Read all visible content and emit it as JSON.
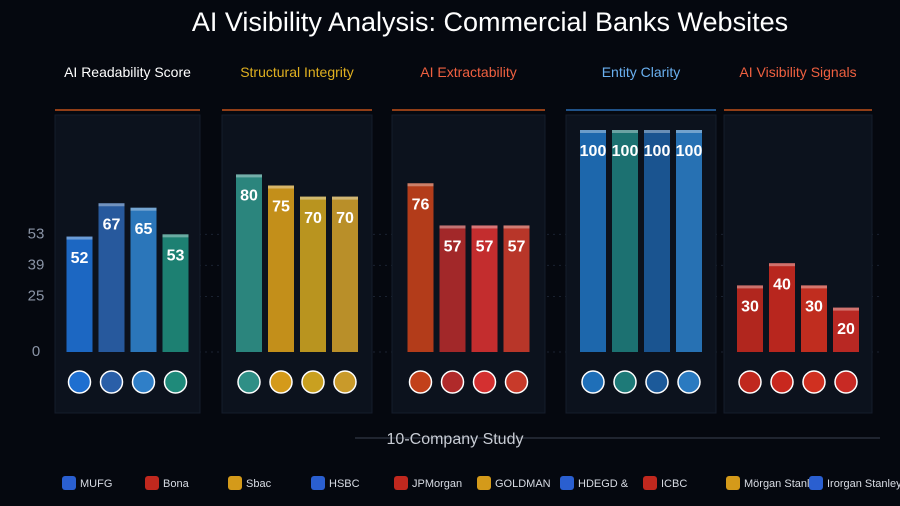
{
  "title": "AI Visibility Analysis: Commercial Banks Websites",
  "chart_data": [
    {
      "type": "bar",
      "title": "AI Readability Score",
      "title_color": "#ffffff",
      "values": [
        52,
        67,
        65,
        53
      ],
      "colors": [
        "#1e6fd0",
        "#2a5fa8",
        "#2f7fc8",
        "#1f8a7a"
      ],
      "ylim": [
        0,
        100
      ],
      "yticks": [
        0,
        25,
        39,
        53
      ]
    },
    {
      "type": "bar",
      "title": "Structural Integrity",
      "title_color": "#e0b020",
      "values": [
        80,
        75,
        70,
        70
      ],
      "colors": [
        "#2f8f86",
        "#d49a1a",
        "#c9a020",
        "#c99a2a"
      ]
    },
    {
      "type": "bar",
      "title": "AI Extractability",
      "title_color": "#f06040",
      "values": [
        76,
        57,
        57,
        57
      ],
      "colors": [
        "#c2401a",
        "#b02a2a",
        "#d43030",
        "#c83a2a"
      ]
    },
    {
      "type": "bar",
      "title": "Entity Clarity",
      "title_color": "#6ab0f0",
      "values": [
        100,
        100,
        100,
        100
      ],
      "colors": [
        "#1f6fb8",
        "#1e7a78",
        "#1c5a9a",
        "#2a7ac0"
      ]
    },
    {
      "type": "bar",
      "title": "AI Visibility Signals",
      "title_color": "#f06040",
      "values": [
        30,
        40,
        30,
        20
      ],
      "colors": [
        "#c0281e",
        "#c8281e",
        "#d03020",
        "#c82a24"
      ]
    }
  ],
  "footer": "10-Company Study",
  "banks": [
    "MUFG",
    "Bona",
    "Sbac",
    "HSBC",
    "JPMorgan",
    "GOLDMAN",
    "HDEGD &",
    "ICBC",
    "Mörgan Stanley",
    "Irorgan Stanley"
  ]
}
